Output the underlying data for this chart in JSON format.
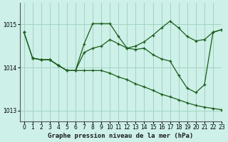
{
  "title": "Graphe pression niveau de la mer (hPa)",
  "bg_color": "#cdf0e8",
  "grid_color": "#9dcfbe",
  "line_color": "#1a5c1a",
  "marker_color": "#1a5c1a",
  "xlim": [
    -0.5,
    23
  ],
  "ylim": [
    1012.75,
    1015.5
  ],
  "yticks": [
    1013,
    1014,
    1015
  ],
  "xticks": [
    0,
    1,
    2,
    3,
    4,
    5,
    6,
    7,
    8,
    9,
    10,
    11,
    12,
    13,
    14,
    15,
    16,
    17,
    18,
    19,
    20,
    21,
    22,
    23
  ],
  "series": [
    {
      "x": [
        0,
        1,
        2,
        3,
        4,
        5,
        6,
        7,
        8,
        9,
        10,
        11,
        12,
        13,
        14,
        15,
        16,
        17,
        18,
        19,
        20,
        21,
        22,
        23
      ],
      "y": [
        1014.82,
        1014.22,
        1014.18,
        1014.18,
        1014.05,
        1013.93,
        1013.93,
        1014.55,
        1015.02,
        1015.02,
        1015.02,
        1014.72,
        1014.45,
        1014.42,
        1014.45,
        1014.3,
        1014.2,
        1014.15,
        1013.82,
        1013.52,
        1013.42,
        1013.6,
        1014.82,
        1014.88
      ]
    },
    {
      "x": [
        0,
        1,
        2,
        3,
        4,
        5,
        6,
        7,
        8,
        9,
        10,
        11,
        12,
        13,
        14,
        15,
        16,
        17,
        18,
        19,
        20,
        21,
        22,
        23
      ],
      "y": [
        1014.82,
        1014.22,
        1014.18,
        1014.18,
        1014.05,
        1013.93,
        1013.93,
        1014.35,
        1014.45,
        1014.5,
        1014.65,
        1014.55,
        1014.45,
        1014.5,
        1014.6,
        1014.75,
        1014.92,
        1015.08,
        1014.92,
        1014.72,
        1014.62,
        1014.65,
        1014.82,
        1014.88
      ]
    },
    {
      "x": [
        1,
        2,
        3,
        4,
        5,
        6,
        7,
        8,
        9,
        10,
        11,
        12,
        13,
        14,
        15,
        16,
        17,
        18,
        19,
        20,
        21,
        22,
        23
      ],
      "y": [
        1014.22,
        1014.18,
        1014.18,
        1014.05,
        1013.93,
        1013.93,
        1013.93,
        1013.93,
        1013.93,
        1013.87,
        1013.78,
        1013.72,
        1013.62,
        1013.55,
        1013.47,
        1013.38,
        1013.32,
        1013.25,
        1013.18,
        1013.12,
        1013.08,
        1013.05,
        1013.02
      ]
    }
  ]
}
